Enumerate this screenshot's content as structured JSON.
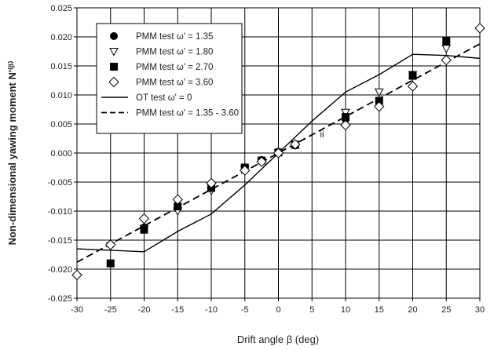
{
  "chart_data": {
    "type": "scatter",
    "xlabel": "Drift angle β (deg)",
    "ylabel": "Non-dimensional yawing moment N'⁽ᵝ⁾",
    "xlim": [
      -30,
      30
    ],
    "ylim": [
      -0.025,
      0.025
    ],
    "x_ticks": [
      -30,
      -25,
      -20,
      -15,
      -10,
      -5,
      0,
      5,
      10,
      15,
      20,
      25,
      30
    ],
    "y_ticks": [
      -0.025,
      -0.02,
      -0.015,
      -0.01,
      -0.005,
      0,
      0.005,
      0.01,
      0.015,
      0.02,
      0.025
    ],
    "x_tick_labels": [
      "-30",
      "-25",
      "-20",
      "-15",
      "-10",
      "-5",
      "0",
      "5",
      "10",
      "15",
      "20",
      "25",
      "30"
    ],
    "y_tick_labels": [
      "-0.025",
      "-0.020",
      "-0.015",
      "-0.010",
      "-0.005",
      "0.000",
      "0.005",
      "0.010",
      "0.015",
      "0.020",
      "0.025"
    ],
    "grid": true,
    "legend_position": "top-left",
    "series": [
      {
        "name": "PMM test ω' = 1.35",
        "marker": "circle",
        "color": "#000000",
        "x": [
          -25,
          -20,
          -15,
          -10,
          -5,
          -2.5,
          0,
          2.5,
          10,
          15,
          20,
          25
        ],
        "y": [
          -0.0158,
          -0.0128,
          -0.009,
          -0.0058,
          -0.0025,
          -0.0012,
          0.0002,
          0.0013,
          0.0058,
          0.009,
          0.0135,
          0.019
        ]
      },
      {
        "name": "PMM test ω' = 1.80",
        "marker": "triangle-down",
        "color": "#000000",
        "x": [
          -25,
          -20,
          -15,
          -10,
          -5,
          -2.5,
          0,
          2.5,
          10,
          15,
          20,
          25
        ],
        "y": [
          -0.016,
          -0.013,
          -0.01,
          -0.0065,
          -0.0028,
          -0.0015,
          0.0,
          0.0015,
          0.007,
          0.0105,
          0.0135,
          0.018
        ]
      },
      {
        "name": "PMM test ω' = 2.70",
        "marker": "square",
        "color": "#000000",
        "x": [
          -25,
          -20,
          -15,
          -10,
          -5,
          -2.5,
          0,
          2.5,
          10,
          15,
          20,
          25
        ],
        "y": [
          -0.019,
          -0.0132,
          -0.0092,
          -0.006,
          -0.0025,
          -0.0013,
          0.0001,
          0.0014,
          0.0062,
          0.009,
          0.0133,
          0.0193
        ]
      },
      {
        "name": "PMM test ω' = 3.60",
        "marker": "diamond",
        "color": "#000000",
        "x": [
          -30,
          -25,
          -20,
          -15,
          -10,
          -5,
          -2.5,
          0,
          2.5,
          10,
          15,
          20,
          25,
          30
        ],
        "y": [
          -0.021,
          -0.0158,
          -0.0113,
          -0.008,
          -0.0052,
          -0.003,
          -0.0015,
          0.0,
          0.0015,
          0.0048,
          0.008,
          0.0115,
          0.016,
          0.0215
        ]
      },
      {
        "name": "OT test ω' = 0",
        "style": "solid-line",
        "color": "#000000",
        "x": [
          -30,
          -20,
          -15,
          -10,
          -5,
          0,
          5,
          10,
          15,
          20,
          25,
          30
        ],
        "y": [
          -0.0165,
          -0.017,
          -0.0135,
          -0.0105,
          -0.0055,
          0.0,
          0.0055,
          0.0105,
          0.0135,
          0.017,
          0.0168,
          0.0163
        ]
      },
      {
        "name": "PMM test ω' = 1.35 - 3.60",
        "style": "dashed-line",
        "color": "#000000",
        "x": [
          -30,
          30
        ],
        "y": [
          -0.0188,
          0.0188
        ]
      }
    ],
    "annotations": [
      {
        "text": "ii",
        "x": 6.5,
        "y": 0.0027
      }
    ]
  }
}
